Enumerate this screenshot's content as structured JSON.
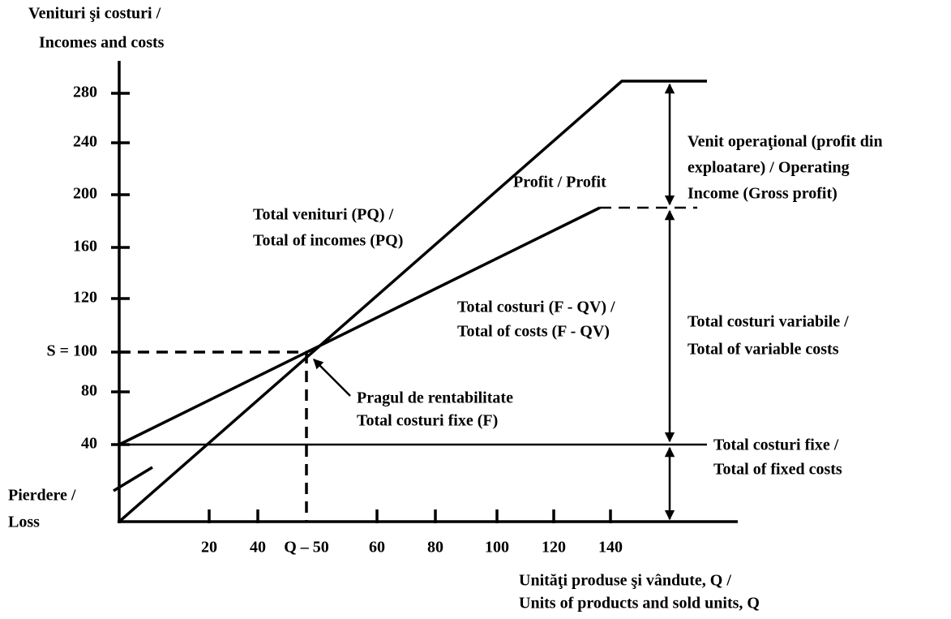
{
  "y_axis": {
    "title": [
      "Venituri şi costuri /",
      "Incomes and costs"
    ],
    "ticks": [
      "280",
      "240",
      "200",
      "160",
      "120",
      "S = 100",
      "80",
      "40"
    ]
  },
  "x_axis": {
    "title": [
      "Unităţi produse şi vândute, Q /",
      "Units of products and sold units, Q"
    ],
    "ticks": [
      "20",
      "40",
      "Q – 50",
      "60",
      "80",
      "100",
      "120",
      "140"
    ]
  },
  "labels": {
    "revenue": [
      "Total venituri (PQ) /",
      "Total of incomes (PQ)"
    ],
    "profit": "Profit / Profit",
    "costs": [
      "Total costuri (F - QV) /",
      "Total of costs (F - QV)"
    ],
    "breakeven": [
      "Pragul de rentabilitate",
      "Total costuri fixe (F)"
    ],
    "operating_income": [
      "Venit operaţional (profit din",
      "exploatare) / Operating",
      "Income (Gross profit)"
    ],
    "variable_costs": [
      "Total costuri variabile /",
      "Total of variable costs"
    ],
    "fixed_costs": [
      "Total costuri fixe /",
      "Total of fixed costs"
    ],
    "loss": [
      "Pierdere /",
      "Loss"
    ]
  }
}
